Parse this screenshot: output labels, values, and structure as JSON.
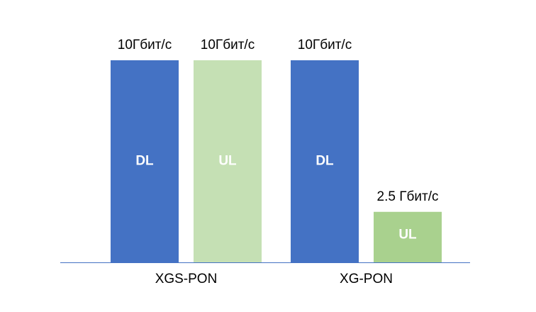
{
  "chart_data": {
    "type": "bar",
    "categories": [
      "XGS-PON",
      "XG-PON"
    ],
    "series": [
      {
        "name": "DL",
        "colors": [
          "#4472c4",
          "#4472c4"
        ],
        "values": [
          10,
          10
        ],
        "value_labels": [
          "10Гбит/с",
          "10Гбит/с"
        ]
      },
      {
        "name": "UL",
        "colors": [
          "#c5e0b4",
          "#a9d18e"
        ],
        "values": [
          10,
          2.5
        ],
        "value_labels": [
          "10Гбит/с",
          "2.5 Гбит/с"
        ]
      }
    ]
  }
}
